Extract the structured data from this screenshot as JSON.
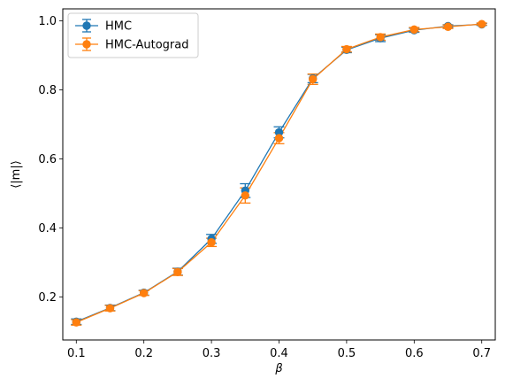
{
  "chart_data": {
    "type": "line",
    "title": "",
    "xlabel": "β",
    "ylabel": "⟨|m|⟩",
    "xlim": [
      0.08,
      0.72
    ],
    "ylim": [
      0.075,
      1.035
    ],
    "xticks": [
      0.1,
      0.2,
      0.3,
      0.4,
      0.5,
      0.6,
      0.7
    ],
    "xtick_labels": [
      "0.1",
      "0.2",
      "0.3",
      "0.4",
      "0.5",
      "0.6",
      "0.7"
    ],
    "yticks": [
      0.2,
      0.4,
      0.6,
      0.8,
      1.0
    ],
    "ytick_labels": [
      "0.2",
      "0.4",
      "0.6",
      "0.8",
      "1.0"
    ],
    "grid": false,
    "legend_position": "upper-left",
    "x": [
      0.1,
      0.15,
      0.2,
      0.25,
      0.3,
      0.35,
      0.4,
      0.45,
      0.5,
      0.55,
      0.6,
      0.65,
      0.7
    ],
    "series": [
      {
        "name": "HMC",
        "color": "#1f77b4",
        "marker": "circle",
        "values": [
          0.128,
          0.168,
          0.212,
          0.273,
          0.368,
          0.508,
          0.677,
          0.833,
          0.916,
          0.95,
          0.973,
          0.985,
          0.99
        ],
        "errors": [
          0.008,
          0.008,
          0.007,
          0.01,
          0.013,
          0.02,
          0.016,
          0.012,
          0.008,
          0.01,
          0.006,
          0.004,
          0.003
        ]
      },
      {
        "name": "HMC-Autograd",
        "color": "#ff7f0e",
        "marker": "circle",
        "values": [
          0.126,
          0.167,
          0.211,
          0.272,
          0.358,
          0.494,
          0.66,
          0.831,
          0.918,
          0.953,
          0.975,
          0.983,
          0.991
        ],
        "errors": [
          0.008,
          0.008,
          0.007,
          0.01,
          0.012,
          0.022,
          0.016,
          0.015,
          0.008,
          0.009,
          0.006,
          0.005,
          0.003
        ]
      }
    ]
  }
}
